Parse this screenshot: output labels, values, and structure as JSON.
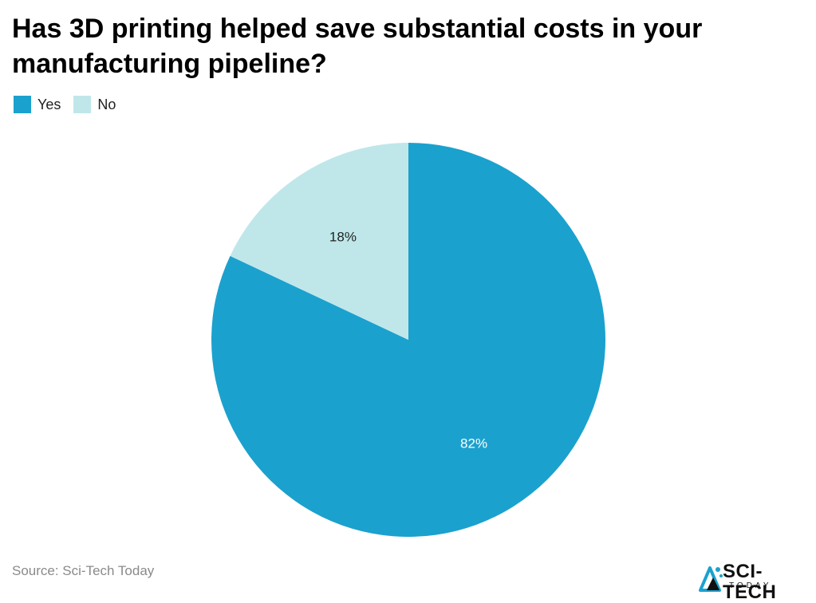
{
  "title": "Has 3D printing helped save substantial costs in your manufacturing pipeline?",
  "legend": [
    {
      "label": "Yes",
      "color": "#1ba1ce"
    },
    {
      "label": "No",
      "color": "#bfe7ea"
    }
  ],
  "chart_data": {
    "type": "pie",
    "title": "Has 3D printing helped save substantial costs in your manufacturing pipeline?",
    "slices": [
      {
        "label": "Yes",
        "value": 82,
        "display": "82%",
        "color": "#1ba1ce",
        "label_color": "#ffffff"
      },
      {
        "label": "No",
        "value": 18,
        "display": "18%",
        "color": "#bfe7ea",
        "label_color": "#222222"
      }
    ],
    "legend_position": "top-left"
  },
  "source": "Source: Sci-Tech Today",
  "logo": {
    "main": "SCI-TECH",
    "sub": "TODAY",
    "icon": "triangle-atom-icon"
  }
}
